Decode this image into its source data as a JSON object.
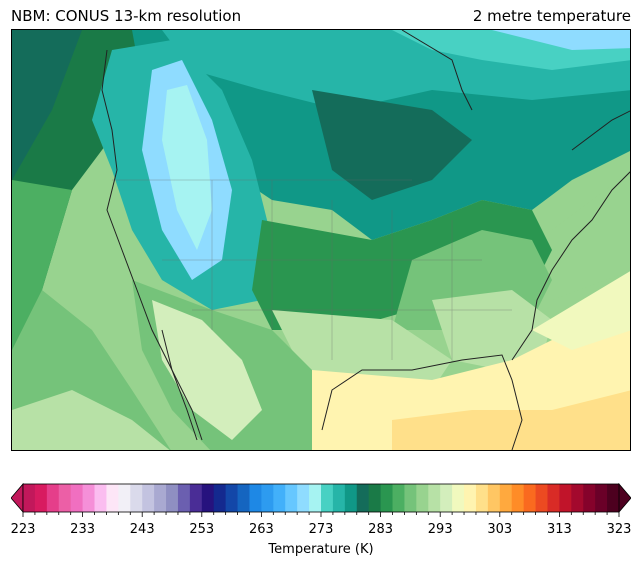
{
  "header": {
    "left_title": "NBM: CONUS 13-km resolution",
    "right_title": "2 metre temperature"
  },
  "colorbar": {
    "label": "Temperature (K)",
    "min": 223,
    "max": 323,
    "step": 2,
    "tick_labels": [
      "223",
      "233",
      "243",
      "253",
      "263",
      "273",
      "283",
      "293",
      "303",
      "313",
      "323"
    ],
    "colors": [
      "#c2185b",
      "#d81b60",
      "#e53e8a",
      "#ec5fa6",
      "#f06fc0",
      "#f58fd8",
      "#fbbdf0",
      "#fde6f7",
      "#f2f0f7",
      "#dadaeb",
      "#c3c3e0",
      "#a9a9d1",
      "#8f8fc2",
      "#6b5fb0",
      "#4a2d96",
      "#26127e",
      "#14298f",
      "#1347a8",
      "#1565c0",
      "#1e88e5",
      "#2d9bf0",
      "#42b0fa",
      "#66c7ff",
      "#8fdcff",
      "#a6f3f2",
      "#48d1c3",
      "#26b5a8",
      "#109887",
      "#146c5a",
      "#1a7a47",
      "#2a9650",
      "#4caf62",
      "#75c37a",
      "#98d38f",
      "#b7e1a6",
      "#d3eebc",
      "#f1f9be",
      "#fff4b0",
      "#ffe08a",
      "#ffc663",
      "#ffa93e",
      "#ff8c27",
      "#fa6a1f",
      "#ec4a21",
      "#d92b26",
      "#c1142a",
      "#a3092d",
      "#85022b",
      "#6a0028",
      "#4d001f"
    ]
  }
}
